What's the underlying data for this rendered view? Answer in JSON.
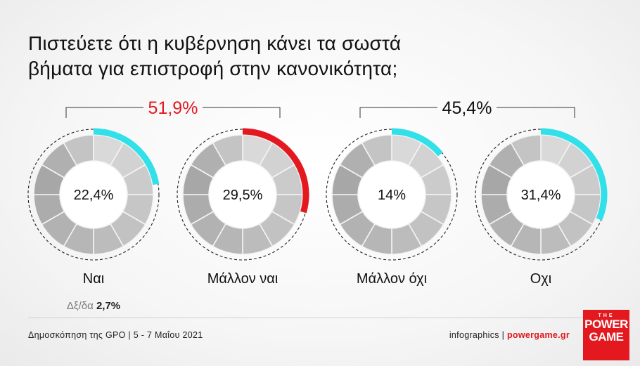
{
  "title_line1": "Πιστεύετε ότι η κυβέρνηση κάνει τα σωστά",
  "title_line2": "βήματα για επιστροφή στην κανονικότητα;",
  "colors": {
    "positive": "#e3191f",
    "highlight": "#32e0ea",
    "text": "#111111",
    "muted": "#7a7a7a"
  },
  "chart_data": {
    "type": "pie",
    "categories": [
      "Ναι",
      "Μάλλον ναι",
      "Μάλλον όχι",
      "Οχι"
    ],
    "values": [
      22.4,
      29.5,
      14,
      31.4
    ],
    "value_labels": [
      "22,4%",
      "29,5%",
      "14%",
      "31,4%"
    ],
    "arc_colors": [
      "#32e0ea",
      "#e3191f",
      "#32e0ea",
      "#32e0ea"
    ],
    "groups": [
      {
        "label": "51,9%",
        "color": "#e3191f",
        "members": [
          0,
          1
        ]
      },
      {
        "label": "45,4%",
        "color": "#111111",
        "members": [
          2,
          3
        ]
      }
    ],
    "note_label": "Δξ/δα",
    "note_value": "2,7%"
  },
  "footer": {
    "source": "Δημοσκόπηση της GPO | 5 - 7 Μαΐου 2021",
    "credit_prefix": "infographics | ",
    "credit_brand": "powergame.gr"
  },
  "logo": {
    "line1": "THE",
    "line2": "POWER",
    "line3": "GAME"
  }
}
